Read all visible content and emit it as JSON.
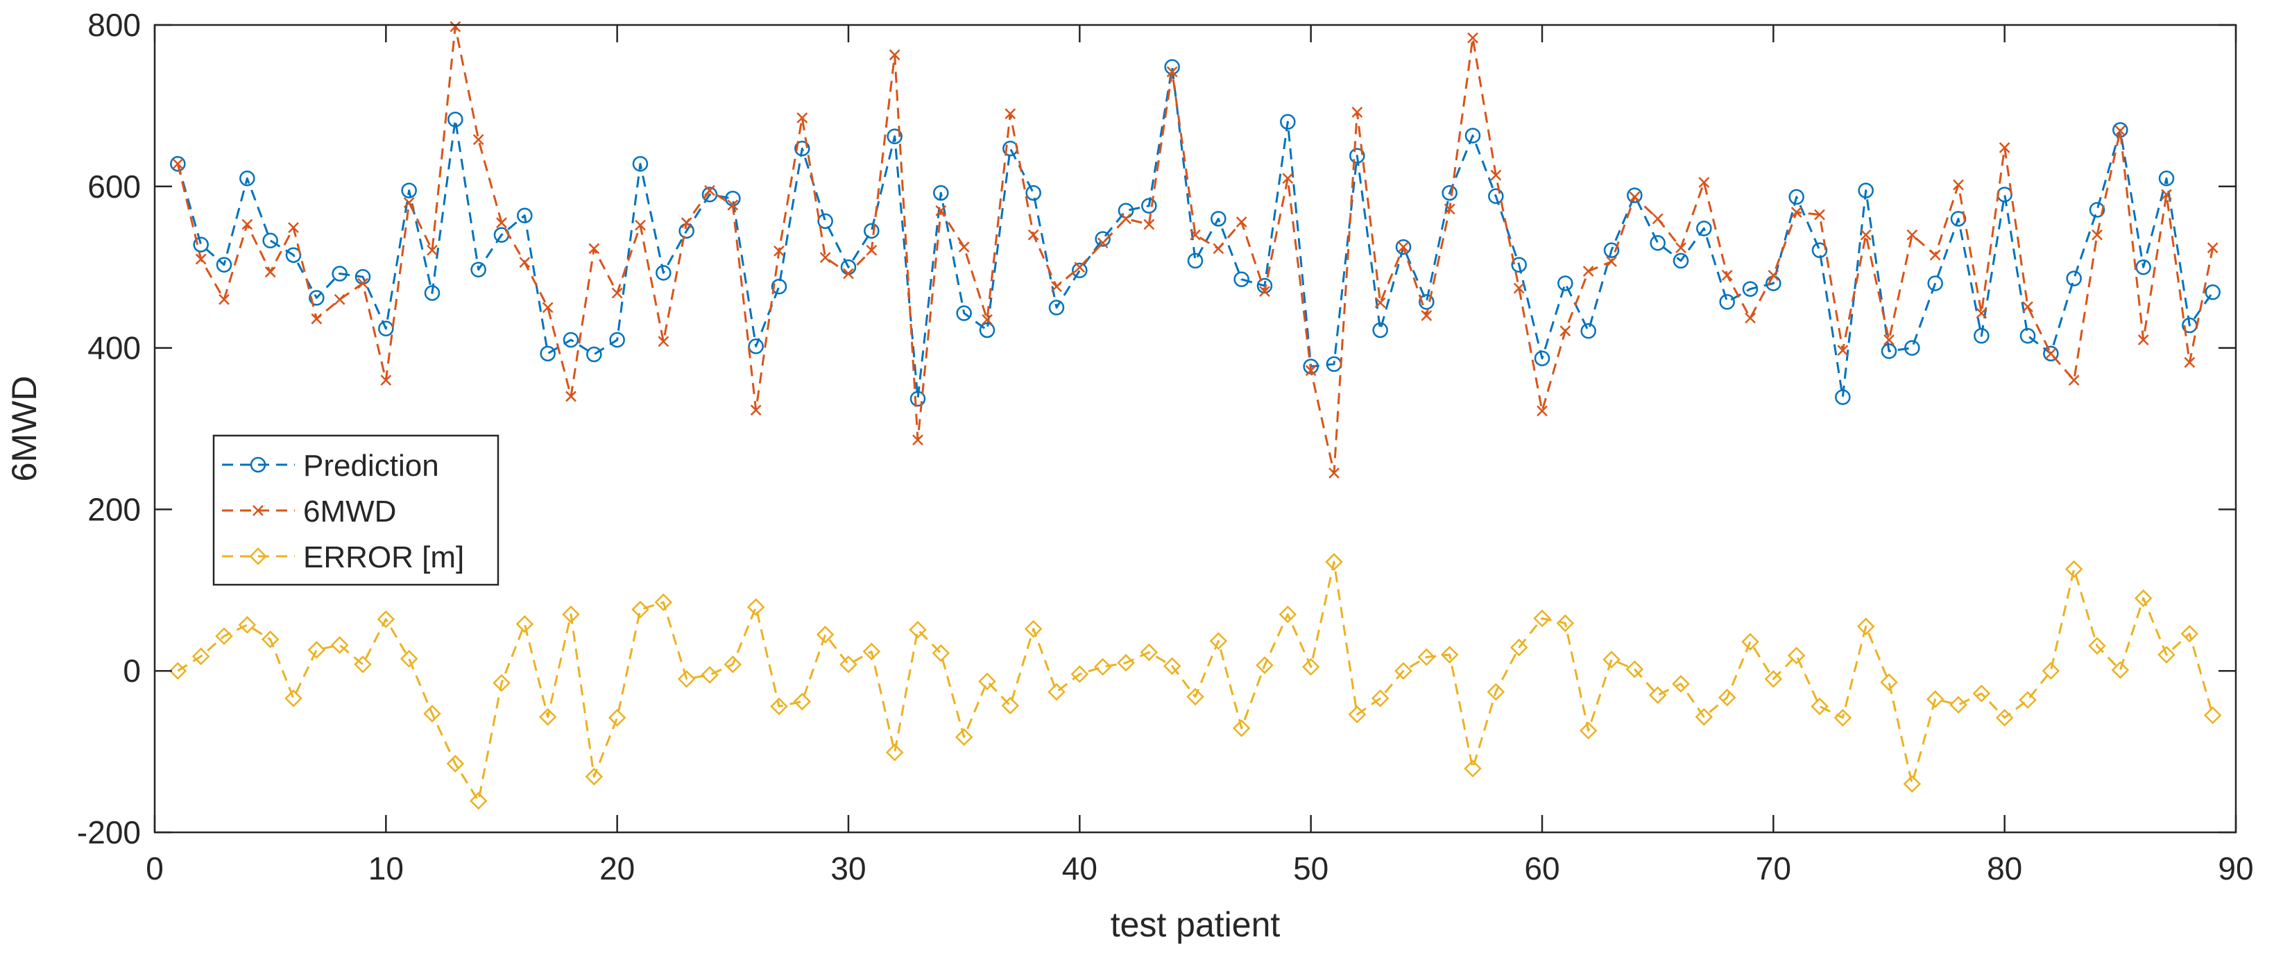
{
  "chart_data": {
    "type": "line",
    "title": "",
    "xlabel": "test patient",
    "ylabel": "6MWD",
    "xlim": [
      0,
      90
    ],
    "ylim": [
      -200,
      800
    ],
    "xticks": [
      0,
      10,
      20,
      30,
      40,
      50,
      60,
      70,
      80,
      90
    ],
    "yticks": [
      -200,
      0,
      200,
      400,
      600,
      800
    ],
    "grid": false,
    "legend_location": "west",
    "series": [
      {
        "name": "Prediction",
        "color": "#0072BD",
        "marker": "circle",
        "line_style": "dashed",
        "values": [
          628,
          528,
          503,
          610,
          533,
          515,
          462,
          492,
          488,
          424,
          595,
          468,
          683,
          497,
          540,
          564,
          393,
          410,
          392,
          410,
          628,
          493,
          545,
          590,
          585,
          402,
          476,
          647,
          557,
          500,
          545,
          662,
          337,
          592,
          443,
          422,
          647,
          592,
          450,
          496,
          535,
          570,
          576,
          748,
          508,
          560,
          485,
          477,
          680,
          377,
          380,
          638,
          422,
          525,
          457,
          592,
          663,
          588,
          503,
          387,
          480,
          421,
          521,
          589,
          530,
          508,
          548,
          457,
          473,
          480,
          587,
          521,
          339,
          595,
          396,
          400,
          480,
          560,
          415,
          590,
          415,
          393,
          486,
          571,
          670,
          500,
          610,
          428,
          469
        ]
      },
      {
        "name": "6MWD",
        "color": "#D95319",
        "marker": "x",
        "line_style": "dashed",
        "values": [
          628,
          510,
          460,
          553,
          494,
          549,
          436,
          460,
          480,
          360,
          580,
          521,
          798,
          658,
          555,
          506,
          450,
          340,
          523,
          468,
          552,
          408,
          555,
          595,
          577,
          323,
          520,
          685,
          512,
          492,
          521,
          763,
          286,
          570,
          525,
          435,
          690,
          540,
          476,
          500,
          530,
          560,
          553,
          742,
          540,
          523,
          556,
          470,
          610,
          372,
          245,
          692,
          456,
          525,
          440,
          572,
          784,
          614,
          474,
          322,
          421,
          495,
          507,
          587,
          560,
          524,
          605,
          490,
          437,
          490,
          568,
          565,
          397,
          540,
          410,
          540,
          515,
          602,
          443,
          648,
          451,
          393,
          360,
          540,
          669,
          410,
          590,
          382,
          524
        ]
      },
      {
        "name": "ERROR [m]",
        "color": "#EDB120",
        "marker": "diamond",
        "line_style": "dashed",
        "values": [
          0,
          18,
          43,
          57,
          39,
          -34,
          26,
          32,
          8,
          64,
          15,
          -53,
          -115,
          -161,
          -15,
          58,
          -57,
          70,
          -131,
          -58,
          76,
          85,
          -10,
          -5,
          8,
          79,
          -44,
          -38,
          45,
          8,
          24,
          -101,
          51,
          22,
          -82,
          -13,
          -43,
          52,
          -26,
          -4,
          5,
          10,
          23,
          6,
          -32,
          37,
          -71,
          7,
          70,
          5,
          135,
          -54,
          -34,
          0,
          17,
          20,
          -121,
          -26,
          29,
          65,
          59,
          -74,
          14,
          2,
          -30,
          -16,
          -57,
          -33,
          36,
          -10,
          19,
          -44,
          -58,
          55,
          -14,
          -140,
          -35,
          -42,
          -28,
          -58,
          -36,
          0,
          126,
          31,
          1,
          90,
          20,
          46,
          -55
        ]
      }
    ]
  }
}
